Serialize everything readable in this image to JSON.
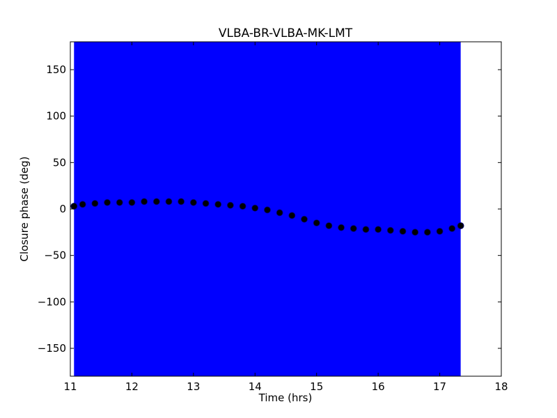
{
  "chart_data": {
    "type": "scatter",
    "title": "VLBA-BR-VLBA-MK-LMT",
    "xlabel": "Time (hrs)",
    "ylabel": "Closure phase (deg)",
    "xlim": [
      11,
      18
    ],
    "ylim": [
      -180,
      180
    ],
    "xticks": [
      11,
      12,
      13,
      14,
      15,
      16,
      17,
      18
    ],
    "yticks": [
      -150,
      -100,
      -50,
      0,
      50,
      100,
      150
    ],
    "xtick_labels": [
      "11",
      "12",
      "13",
      "14",
      "15",
      "16",
      "17",
      "18"
    ],
    "ytick_labels": [
      "−150",
      "−100",
      "−50",
      "0",
      "50",
      "100",
      "150"
    ],
    "grid": false,
    "colors": {
      "error_band": "#0000ff",
      "points": "#000000",
      "point_edge": "#000080"
    },
    "series": [
      {
        "x": [
          11.06,
          11.2,
          11.4,
          11.6,
          11.8,
          12.0,
          12.2,
          12.4,
          12.6,
          12.8,
          13.0,
          13.2,
          13.4,
          13.6,
          13.8,
          14.0,
          14.2,
          14.4,
          14.6,
          14.8,
          15.0,
          15.2,
          15.4,
          15.6,
          15.8,
          16.0,
          16.2,
          16.4,
          16.6,
          16.8,
          17.0,
          17.2,
          17.34
        ],
        "y": [
          3,
          5,
          6,
          7,
          7,
          7,
          8,
          8,
          8,
          8,
          7,
          6,
          5,
          4,
          3,
          1,
          -1,
          -4,
          -7,
          -11,
          -15,
          -18,
          -20,
          -21,
          -22,
          -22,
          -23,
          -24,
          -25,
          -25,
          -24,
          -21,
          -18
        ],
        "error_band": {
          "x_range": [
            11.06,
            17.34
          ],
          "y_range": [
            -180,
            180
          ]
        }
      }
    ]
  }
}
